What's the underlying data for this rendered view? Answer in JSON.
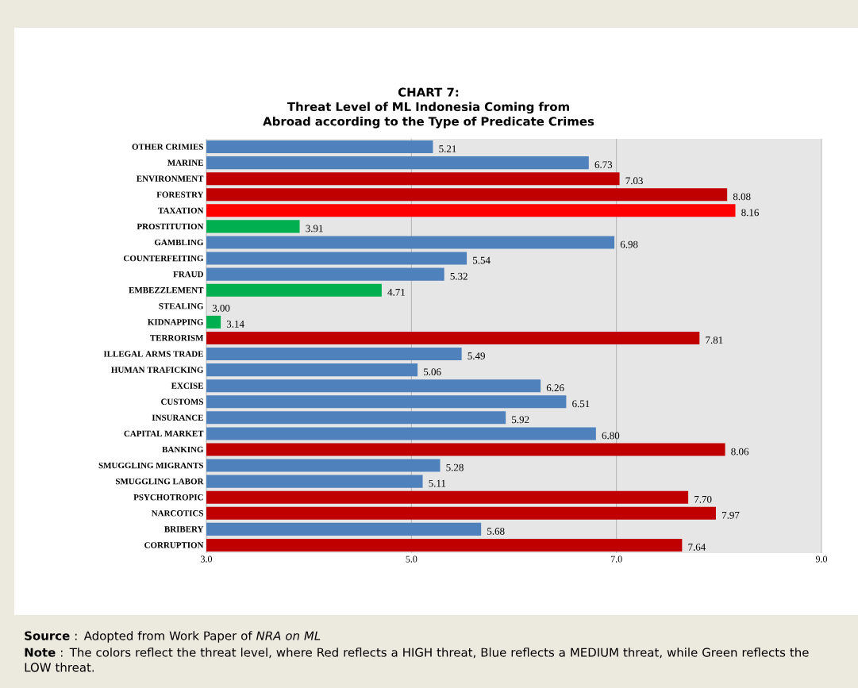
{
  "chart_data": {
    "type": "bar",
    "orientation": "horizontal",
    "title": "CHART 7:",
    "subtitle": "Threat Level of ML Indonesia Coming from Abroad according to the Type of Predicate Crimes",
    "categories": [
      "OTHER CRIMIES",
      "MARINE",
      "ENVIRONMENT",
      "FORESTRY",
      "TAXATION",
      "PROSTITUTION",
      "GAMBLING",
      "COUNTERFEITING",
      "FRAUD",
      "EMBEZZLEMENT",
      "STEALING",
      "KIDNAPPING",
      "TERRORISM",
      "ILLEGAL ARMS TRADE",
      "HUMAN TRAFICKING",
      "EXCISE",
      "CUSTOMS",
      "INSURANCE",
      "CAPITAL MARKET",
      "BANKING",
      "SMUGGLING MIGRANTS",
      "SMUGGLING LABOR",
      "PSYCHOTROPIC",
      "NARCOTICS",
      "BRIBERY",
      "CORRUPTION"
    ],
    "values": [
      5.21,
      6.73,
      7.03,
      8.08,
      8.16,
      3.91,
      6.98,
      5.54,
      5.32,
      4.71,
      3.0,
      3.14,
      7.81,
      5.49,
      5.06,
      6.26,
      6.51,
      5.92,
      6.8,
      8.06,
      5.28,
      5.11,
      7.7,
      7.97,
      5.68,
      7.64
    ],
    "value_labels": [
      "5.21",
      "6.73",
      "7.03",
      "8.08",
      "8.16",
      "3.91",
      "6.98",
      "5.54",
      "5.32",
      "4.71",
      "3.00",
      "3.14",
      "7.81",
      "5.49",
      "5.06",
      "6.26",
      "6.51",
      "5.92",
      "6.80",
      "8.06",
      "5.28",
      "5.11",
      "7.70",
      "7.97",
      "5.68",
      "7.64"
    ],
    "colors": [
      "#4f81bd",
      "#4f81bd",
      "#c00000",
      "#c00000",
      "#ff0000",
      "#00b050",
      "#4f81bd",
      "#4f81bd",
      "#4f81bd",
      "#00b050",
      "#4f81bd",
      "#00b050",
      "#c00000",
      "#4f81bd",
      "#4f81bd",
      "#4f81bd",
      "#4f81bd",
      "#4f81bd",
      "#4f81bd",
      "#c00000",
      "#4f81bd",
      "#4f81bd",
      "#c00000",
      "#c00000",
      "#4f81bd",
      "#c00000"
    ],
    "xlim": [
      3.0,
      9.0
    ],
    "xticks": [
      {
        "value": 3,
        "label": "3.0"
      },
      {
        "value": 5,
        "label": "5.0"
      },
      {
        "value": 7,
        "label": "7.0"
      },
      {
        "value": 9,
        "label": "9.0"
      }
    ],
    "grid": "x",
    "annotations": [
      "**Source** : Adopted from Work Paper of *NRA on ML*",
      "**Note** : The colors reflect the threat level, where Red reflects a HIGH threat, Blue reflects a MEDIUM threat, while Green reflects the LOW threat."
    ]
  }
}
